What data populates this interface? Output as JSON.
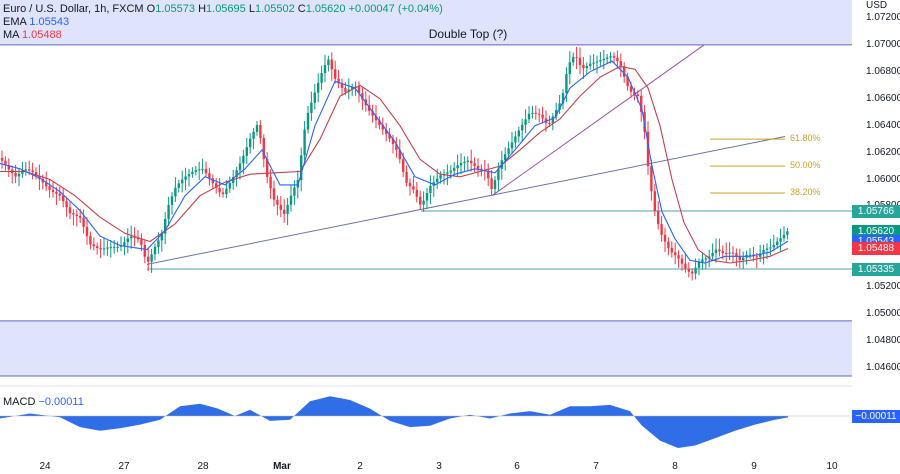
{
  "header": {
    "symbol": "Euro / U.S. Dollar, 1h, FXCM",
    "open_label": "O",
    "open": "1.05573",
    "high_label": "H",
    "high": "1.05695",
    "low_label": "L",
    "low": "1.05502",
    "close_label": "C",
    "close": "1.05620",
    "change": "+0.00047 (+0.04%)",
    "ema_label": "EMA",
    "ema_value": "1.05543",
    "ma_label": "MA",
    "ma_value": "1.05488"
  },
  "title": "Double Top (?)",
  "currency": "USD",
  "macd": {
    "label": "MACD",
    "value": "−0.00011",
    "tag": "−0.00011"
  },
  "colors": {
    "up": "#089981",
    "down": "#f23645",
    "ema": "#2962ff",
    "ma": "#c2404e",
    "zone": "#dfe3fb",
    "level": "#4fa3a0",
    "trend": "#6a72a8",
    "fib": "#c9a227",
    "macd_fill": "#2f6ee6"
  },
  "chart_data": {
    "type": "line",
    "title": "Double Top (?)",
    "ylabel": "USD",
    "ylim": [
      1.0455,
      1.0728
    ],
    "x_ticks": [
      "24",
      "27",
      "28",
      "Mar",
      "2",
      "3",
      "6",
      "7",
      "8",
      "9",
      "10"
    ],
    "y_ticks": [
      "1.07200",
      "1.07000",
      "1.06800",
      "1.06600",
      "1.06400",
      "1.06200",
      "1.06000",
      "1.05800",
      "1.05620",
      "1.05400",
      "1.05200",
      "1.05000",
      "1.04800",
      "1.04600"
    ],
    "price_path": [
      [
        0,
        1.0616
      ],
      [
        8,
        1.0608
      ],
      [
        16,
        1.0602
      ],
      [
        24,
        1.0608
      ],
      [
        32,
        1.0606
      ],
      [
        40,
        1.06
      ],
      [
        50,
        1.0592
      ],
      [
        60,
        1.0588
      ],
      [
        70,
        1.0575
      ],
      [
        80,
        1.0572
      ],
      [
        90,
        1.0552
      ],
      [
        100,
        1.0548
      ],
      [
        110,
        1.055
      ],
      [
        120,
        1.055
      ],
      [
        130,
        1.0558
      ],
      [
        140,
        1.0555
      ],
      [
        147,
        1.0537
      ],
      [
        155,
        1.055
      ],
      [
        162,
        1.056
      ],
      [
        168,
        1.058
      ],
      [
        176,
        1.0595
      ],
      [
        185,
        1.0602
      ],
      [
        195,
        1.0607
      ],
      [
        203,
        1.0608
      ],
      [
        212,
        1.0598
      ],
      [
        222,
        1.0588
      ],
      [
        232,
        1.06
      ],
      [
        242,
        1.0615
      ],
      [
        250,
        1.063
      ],
      [
        258,
        1.0642
      ],
      [
        266,
        1.0605
      ],
      [
        274,
        1.0585
      ],
      [
        284,
        1.0574
      ],
      [
        292,
        1.059
      ],
      [
        298,
        1.06
      ],
      [
        306,
        1.0645
      ],
      [
        315,
        1.0665
      ],
      [
        322,
        1.068
      ],
      [
        328,
        1.069
      ],
      [
        335,
        1.0675
      ],
      [
        345,
        1.0665
      ],
      [
        355,
        1.067
      ],
      [
        362,
        1.066
      ],
      [
        370,
        1.065
      ],
      [
        380,
        1.064
      ],
      [
        390,
        1.063
      ],
      [
        398,
        1.062
      ],
      [
        406,
        1.0598
      ],
      [
        414,
        1.0592
      ],
      [
        421,
        1.058
      ],
      [
        430,
        1.0595
      ],
      [
        440,
        1.0603
      ],
      [
        450,
        1.0606
      ],
      [
        460,
        1.0612
      ],
      [
        468,
        1.0614
      ],
      [
        478,
        1.0608
      ],
      [
        486,
        1.0606
      ],
      [
        492,
        1.0592
      ],
      [
        500,
        1.0612
      ],
      [
        510,
        1.0625
      ],
      [
        520,
        1.0638
      ],
      [
        530,
        1.065
      ],
      [
        540,
        1.0648
      ],
      [
        548,
        1.064
      ],
      [
        555,
        1.065
      ],
      [
        562,
        1.066
      ],
      [
        568,
        1.0685
      ],
      [
        575,
        1.0693
      ],
      [
        582,
        1.0682
      ],
      [
        590,
        1.0686
      ],
      [
        598,
        1.0688
      ],
      [
        605,
        1.069
      ],
      [
        612,
        1.0692
      ],
      [
        620,
        1.0686
      ],
      [
        627,
        1.067
      ],
      [
        632,
        1.0664
      ],
      [
        638,
        1.0662
      ],
      [
        644,
        1.064
      ],
      [
        648,
        1.061
      ],
      [
        652,
        1.0588
      ],
      [
        656,
        1.0572
      ],
      [
        662,
        1.0558
      ],
      [
        670,
        1.0547
      ],
      [
        678,
        1.0542
      ],
      [
        686,
        1.0533
      ],
      [
        692,
        1.053
      ],
      [
        700,
        1.054
      ],
      [
        708,
        1.0542
      ],
      [
        716,
        1.0548
      ],
      [
        724,
        1.0545
      ],
      [
        732,
        1.0546
      ],
      [
        740,
        1.054
      ],
      [
        748,
        1.0545
      ],
      [
        756,
        1.0542
      ],
      [
        764,
        1.0548
      ],
      [
        772,
        1.055
      ],
      [
        780,
        1.0556
      ],
      [
        788,
        1.0562
      ]
    ],
    "ema_path": [
      [
        0,
        1.0612
      ],
      [
        20,
        1.0608
      ],
      [
        40,
        1.0601
      ],
      [
        60,
        1.0591
      ],
      [
        80,
        1.0577
      ],
      [
        100,
        1.0558
      ],
      [
        120,
        1.0551
      ],
      [
        147,
        1.0548
      ],
      [
        165,
        1.0562
      ],
      [
        185,
        1.0588
      ],
      [
        205,
        1.0602
      ],
      [
        225,
        1.0596
      ],
      [
        245,
        1.0608
      ],
      [
        262,
        1.0622
      ],
      [
        280,
        1.0596
      ],
      [
        298,
        1.0596
      ],
      [
        315,
        1.064
      ],
      [
        335,
        1.0673
      ],
      [
        355,
        1.0668
      ],
      [
        375,
        1.0648
      ],
      [
        395,
        1.0628
      ],
      [
        415,
        1.0602
      ],
      [
        435,
        1.0596
      ],
      [
        455,
        1.0604
      ],
      [
        475,
        1.0608
      ],
      [
        495,
        1.0605
      ],
      [
        515,
        1.0622
      ],
      [
        535,
        1.064
      ],
      [
        555,
        1.0646
      ],
      [
        570,
        1.0668
      ],
      [
        590,
        1.068
      ],
      [
        612,
        1.0688
      ],
      [
        628,
        1.0676
      ],
      [
        642,
        1.0652
      ],
      [
        652,
        1.061
      ],
      [
        662,
        1.0576
      ],
      [
        675,
        1.0556
      ],
      [
        690,
        1.054
      ],
      [
        705,
        1.0538
      ],
      [
        725,
        1.0543
      ],
      [
        750,
        1.0543
      ],
      [
        770,
        1.0546
      ],
      [
        788,
        1.05543
      ]
    ],
    "ma_path": [
      [
        0,
        1.0606
      ],
      [
        25,
        1.0606
      ],
      [
        50,
        1.06
      ],
      [
        75,
        1.0588
      ],
      [
        100,
        1.0572
      ],
      [
        125,
        1.056
      ],
      [
        150,
        1.0554
      ],
      [
        175,
        1.0567
      ],
      [
        200,
        1.0588
      ],
      [
        225,
        1.0598
      ],
      [
        250,
        1.0604
      ],
      [
        275,
        1.0605
      ],
      [
        300,
        1.0606
      ],
      [
        320,
        1.063
      ],
      [
        340,
        1.0662
      ],
      [
        360,
        1.067
      ],
      [
        380,
        1.066
      ],
      [
        400,
        1.064
      ],
      [
        420,
        1.0615
      ],
      [
        440,
        1.0604
      ],
      [
        460,
        1.0602
      ],
      [
        480,
        1.0606
      ],
      [
        500,
        1.061
      ],
      [
        520,
        1.0622
      ],
      [
        540,
        1.0635
      ],
      [
        560,
        1.0645
      ],
      [
        580,
        1.0662
      ],
      [
        600,
        1.0676
      ],
      [
        620,
        1.0684
      ],
      [
        635,
        1.0682
      ],
      [
        648,
        1.0668
      ],
      [
        660,
        1.064
      ],
      [
        672,
        1.06
      ],
      [
        684,
        1.0568
      ],
      [
        698,
        1.0548
      ],
      [
        712,
        1.054
      ],
      [
        730,
        1.0538
      ],
      [
        750,
        1.054
      ],
      [
        770,
        1.0543
      ],
      [
        788,
        1.05488
      ]
    ],
    "levels": {
      "zone_top": [
        1.07,
        1.0728
      ],
      "zone_bottom": [
        1.0455,
        1.0495
      ],
      "neckline": 1.05766,
      "support": 1.05335
    },
    "trendlines": [
      {
        "from": [
          "27",
          1.0537
        ],
        "to": [
          "3",
          1.058
        ]
      },
      {
        "from": [
          "2",
          1.0588
        ],
        "to": [
          "7",
          1.07
        ]
      },
      {
        "from": [
          "2",
          1.0588
        ],
        "to": [
          "7",
          1.0632
        ]
      }
    ],
    "fibonacci": [
      {
        "label": "61.80%",
        "value": 1.063
      },
      {
        "label": "50.00%",
        "value": 1.061
      },
      {
        "label": "38.20%",
        "value": 1.059
      }
    ],
    "price_tags": [
      {
        "value": "1.05766",
        "color": "#26a69a"
      },
      {
        "value": "1.05620",
        "color": "#089981"
      },
      {
        "value": "1.05543",
        "color": "#2962ff"
      },
      {
        "value": "1.05488",
        "color": "#f23645"
      },
      {
        "value": "1.05335",
        "color": "#26a69a"
      }
    ],
    "macd_path": [
      [
        0,
        -0.0002
      ],
      [
        30,
        0.0002
      ],
      [
        60,
        -0.0001
      ],
      [
        80,
        -0.0009
      ],
      [
        100,
        -0.0012
      ],
      [
        120,
        -0.001
      ],
      [
        140,
        -0.0007
      ],
      [
        160,
        -0.0003
      ],
      [
        180,
        0.0008
      ],
      [
        200,
        0.001
      ],
      [
        218,
        0.0006
      ],
      [
        235,
        0.0
      ],
      [
        250,
        0.0005
      ],
      [
        270,
        -0.0004
      ],
      [
        290,
        -0.0003
      ],
      [
        310,
        0.0012
      ],
      [
        330,
        0.0016
      ],
      [
        350,
        0.0013
      ],
      [
        370,
        0.0006
      ],
      [
        390,
        -0.0004
      ],
      [
        410,
        -0.0009
      ],
      [
        430,
        -0.0008
      ],
      [
        450,
        -0.0002
      ],
      [
        470,
        0.0001
      ],
      [
        490,
        -0.0002
      ],
      [
        510,
        0.0002
      ],
      [
        530,
        0.0004
      ],
      [
        550,
        0.0001
      ],
      [
        570,
        0.0008
      ],
      [
        590,
        0.0008
      ],
      [
        610,
        0.0009
      ],
      [
        630,
        0.0004
      ],
      [
        642,
        -0.0008
      ],
      [
        660,
        -0.002
      ],
      [
        678,
        -0.0026
      ],
      [
        695,
        -0.0024
      ],
      [
        715,
        -0.0018
      ],
      [
        735,
        -0.0012
      ],
      [
        755,
        -0.0007
      ],
      [
        775,
        -0.0003
      ],
      [
        788,
        -0.00011
      ]
    ]
  }
}
